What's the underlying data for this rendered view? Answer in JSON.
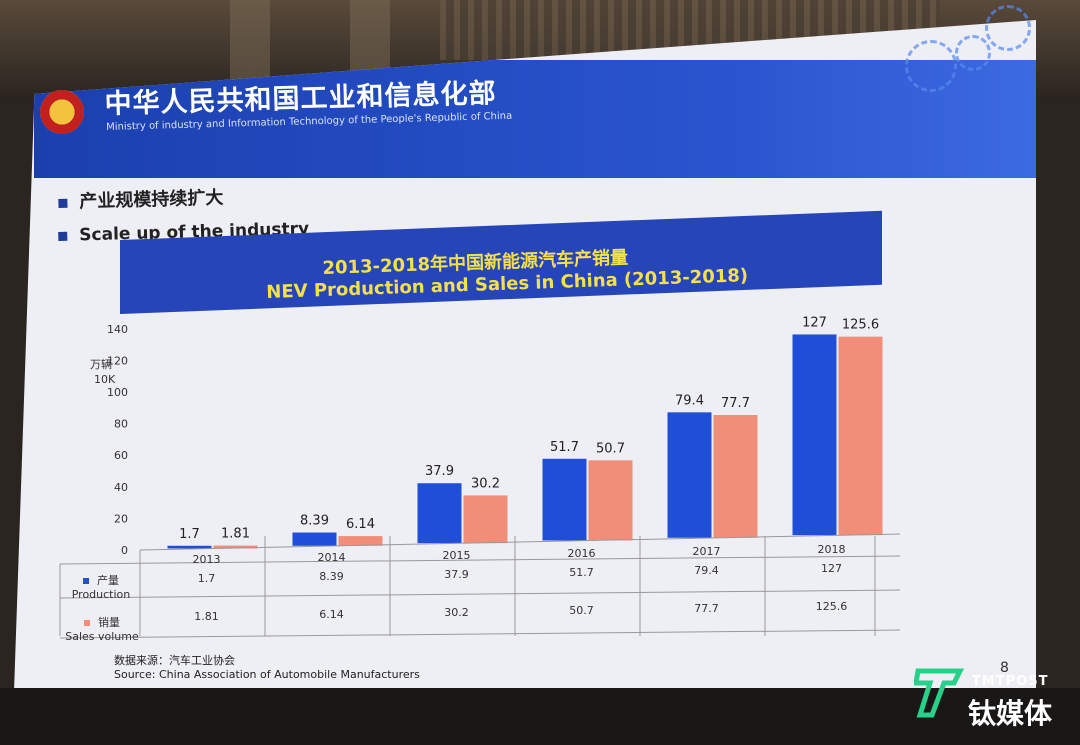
{
  "ministry": {
    "name_cn": "中华人民共和国工业和信息化部",
    "name_en": "Ministry of industry and Information Technology of the People's Republic of China"
  },
  "bullets": [
    "产业规模持续扩大",
    "Scale up of the industry"
  ],
  "chart_data": {
    "type": "bar",
    "title": "2013-2018年中国新能源汽车产销量",
    "subtitle": "NEV Production and Sales in China (2013-2018)",
    "ylabel": "万辆",
    "ylabel_en": "10K",
    "categories": [
      "2013",
      "2014",
      "2015",
      "2016",
      "2017",
      "2018"
    ],
    "ylim": [
      0,
      140
    ],
    "yticks": [
      0,
      20,
      40,
      60,
      80,
      100,
      120,
      140
    ],
    "series": [
      {
        "name": "产量",
        "name_en": "Production",
        "color": "#1f4fd6",
        "values": [
          1.7,
          8.39,
          37.9,
          51.7,
          79.4,
          127
        ],
        "labels": [
          "1.7",
          "8.39",
          "37.9",
          "51.7",
          "79.4",
          "127"
        ]
      },
      {
        "name": "销量",
        "name_en": "Sales volume",
        "color": "#f08e7a",
        "values": [
          1.81,
          6.14,
          30.2,
          50.7,
          77.7,
          125.6
        ],
        "labels": [
          "1.81",
          "6.14",
          "30.2",
          "50.7",
          "77.7",
          "125.6"
        ]
      }
    ]
  },
  "source": {
    "cn": "数据来源：汽车工业协会",
    "en": "Source: China Association of Automobile Manufacturers"
  },
  "page_number": "8",
  "watermark": {
    "top": "TMTPOST",
    "cn": "钛媒体"
  },
  "colors": {
    "banner": "#2545b8",
    "title_text": "#f4e04d",
    "slide_bg": "#eeeef5"
  }
}
